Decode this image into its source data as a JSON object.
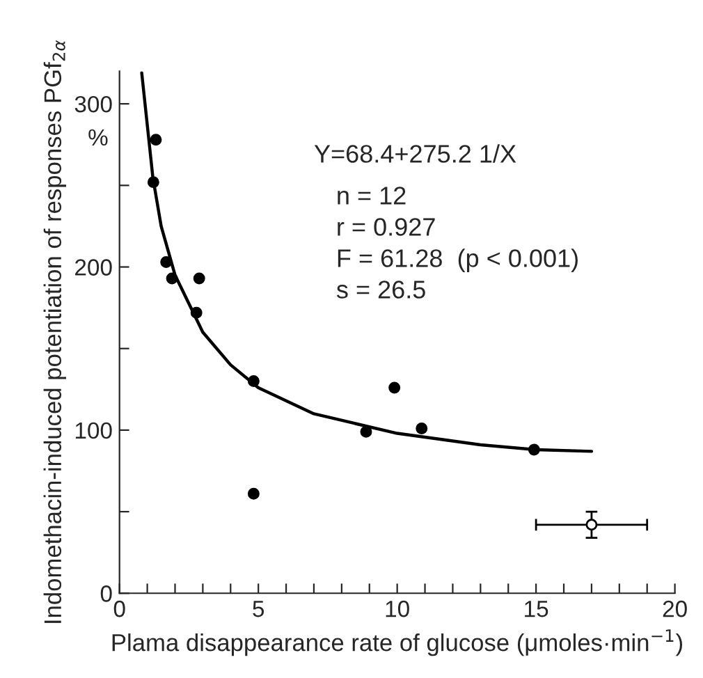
{
  "chart_data": {
    "type": "scatter",
    "xlabel": "Plama disappearance rate of glucose (μmoles·min$^{−1}$)",
    "ylabel": "Indomethacin-induced potentiation of responses PGf$_{2α}$",
    "annotations": [
      "%",
      "Y=68.4+275.2 1/X",
      "n = 12",
      "r = 0.927",
      "F = 61.28  (p < 0.001)",
      "s = 26.5"
    ],
    "series": [
      {
        "color": "#000000",
        "marker": "circle",
        "x": [
          1.31,
          1.22,
          1.68,
          1.89,
          2.87,
          2.77,
          4.83,
          4.83,
          8.88,
          9.9,
          10.88,
          14.93
        ],
        "values": [
          278,
          252,
          203,
          193,
          193,
          172,
          130,
          61,
          99,
          126,
          101,
          88
        ]
      },
      {
        "color": "#ffffff",
        "marker": "circle",
        "x": [
          17.0
        ],
        "values": [
          42
        ],
        "errors": [
          8
        ],
        "xerrors": [
          2
        ]
      },
      {
        "type": "line",
        "color": "#000000",
        "marker": "none",
        "x": [
          0.8,
          1.2,
          1.5,
          2,
          3,
          4,
          5,
          7,
          10,
          13,
          15,
          17
        ],
        "values": [
          319,
          255,
          225,
          195,
          160,
          140,
          126,
          110,
          98,
          91,
          88,
          87
        ]
      }
    ],
    "xlim": [
      0,
      20
    ],
    "ylim": [
      0,
      320
    ],
    "xticks": [
      0,
      {
        "value": 1,
        "label": null
      },
      {
        "value": 2,
        "label": null
      },
      {
        "value": 3,
        "label": null
      },
      {
        "value": 4,
        "label": null
      },
      5,
      {
        "value": 6,
        "label": null
      },
      {
        "value": 7,
        "label": null
      },
      {
        "value": 8,
        "label": null
      },
      {
        "value": 9,
        "label": null
      },
      10,
      {
        "value": 11,
        "label": null
      },
      {
        "value": 12,
        "label": null
      },
      {
        "value": 13,
        "label": null
      },
      {
        "value": 14,
        "label": null
      },
      15,
      {
        "value": 16,
        "label": null
      },
      {
        "value": 17,
        "label": null
      },
      {
        "value": 18,
        "label": null
      },
      {
        "value": 19,
        "label": null
      },
      20
    ],
    "yticks": [
      0,
      {
        "value": 50,
        "label": null
      },
      100,
      {
        "value": 150,
        "label": null
      },
      200,
      {
        "value": 250,
        "label": null
      },
      300
    ],
    "grid": false,
    "legend": false
  }
}
